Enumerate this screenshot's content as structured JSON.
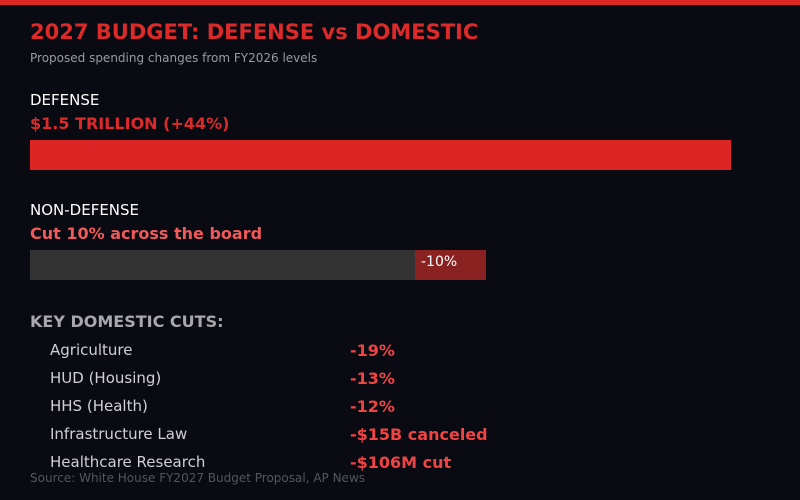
{
  "title": "2027 BUDGET: DEFENSE vs DOMESTIC",
  "subtitle": "Proposed spending changes from FY2026 levels",
  "colors": {
    "accent": "#dc2626",
    "cut": "#8b2222",
    "track": "#333333",
    "value_text": "#ef4444",
    "background": "#0a0a12"
  },
  "defense": {
    "label": "DEFENSE",
    "value": "$1.5 TRILLION (+44%)",
    "change_percent": 44
  },
  "non_defense": {
    "label": "NON-DEFENSE",
    "value": "Cut 10% across the board",
    "cut_label": "-10%",
    "change_percent": -10
  },
  "key_cuts": {
    "heading": "KEY DOMESTIC CUTS:",
    "items": [
      {
        "label": "Agriculture",
        "value": "-19%"
      },
      {
        "label": "HUD (Housing)",
        "value": "-13%"
      },
      {
        "label": "HHS (Health)",
        "value": "-12%"
      },
      {
        "label": "Infrastructure Law",
        "value": "-$15B canceled"
      },
      {
        "label": "Healthcare Research",
        "value": "-$106M cut"
      }
    ]
  },
  "source": "Source: White House FY2027 Budget Proposal, AP News"
}
